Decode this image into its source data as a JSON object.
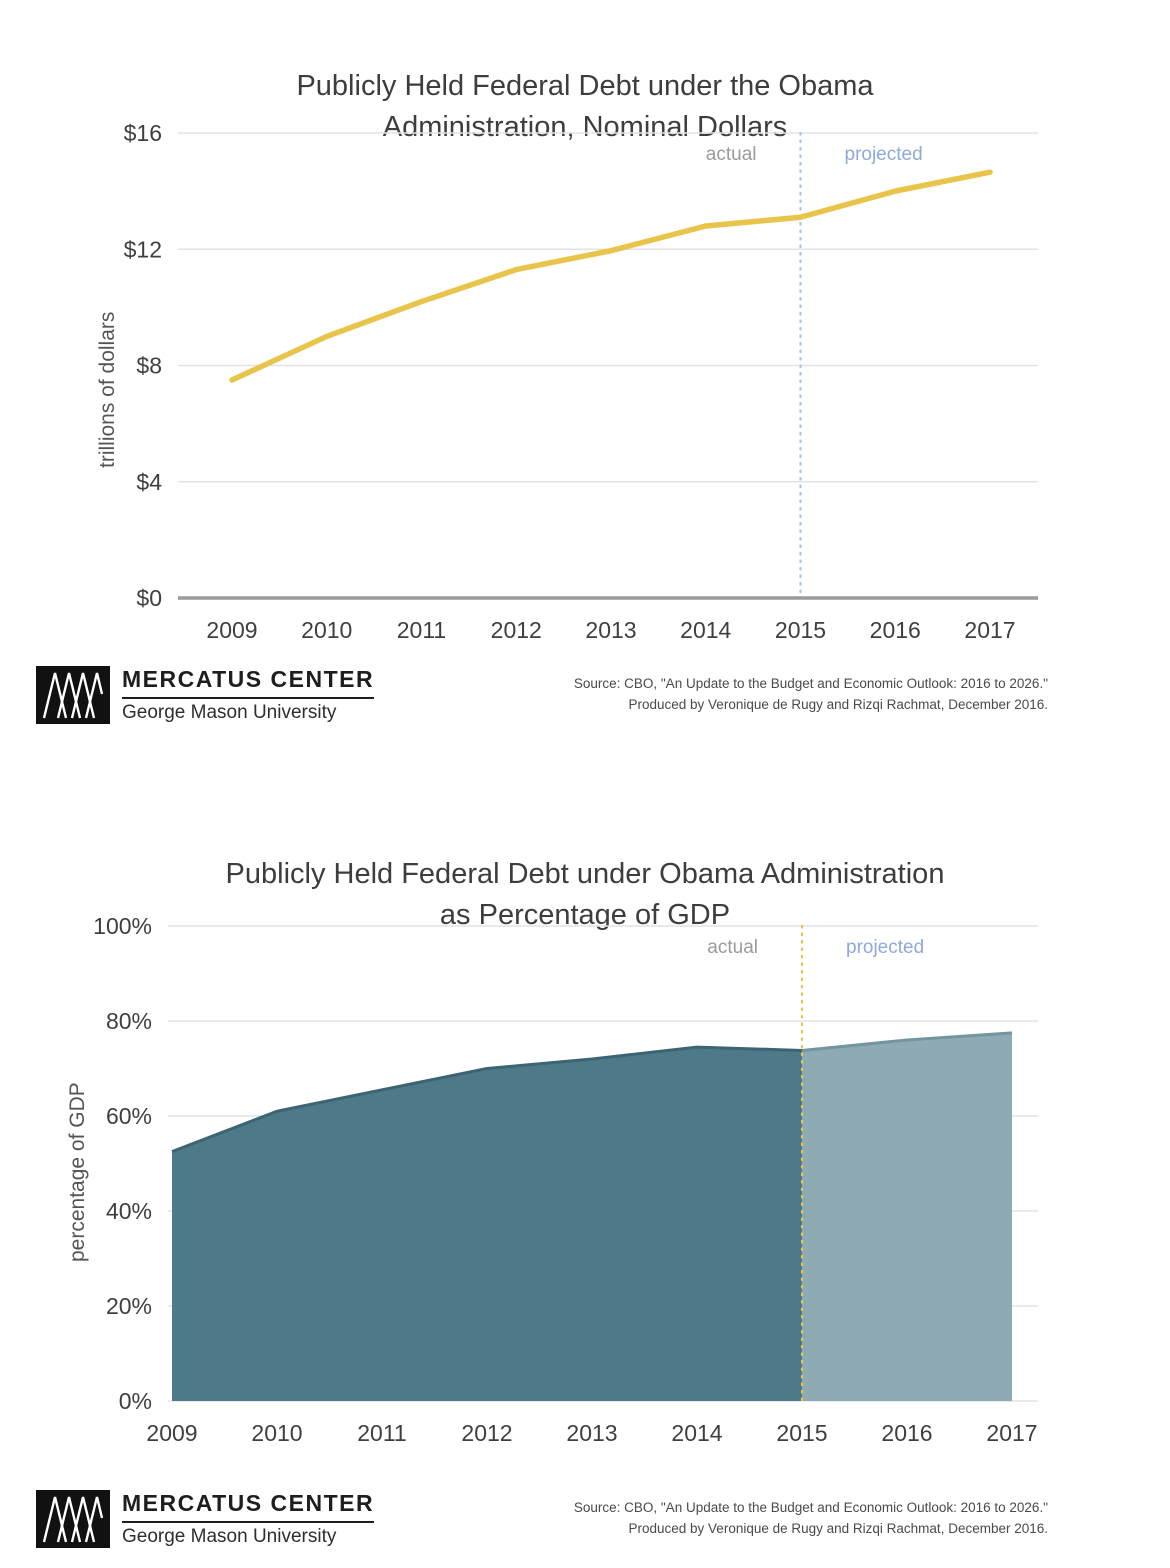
{
  "chart_data": [
    {
      "type": "line",
      "title": "Publicly Held Federal Debt under the Obama Administration, Nominal Dollars",
      "title_lines": [
        "Publicly Held Federal Debt under the Obama",
        "Administration, Nominal Dollars"
      ],
      "ylabel": "trillions of dollars",
      "x": [
        2009,
        2010,
        2011,
        2012,
        2013,
        2014,
        2015,
        2016,
        2017
      ],
      "values": [
        7.5,
        9.0,
        10.2,
        11.3,
        11.95,
        12.8,
        13.1,
        14.0,
        14.65
      ],
      "ylim": [
        0,
        16
      ],
      "yticks": [
        0,
        4,
        8,
        12,
        16
      ],
      "ytick_labels": [
        "$0",
        "$4",
        "$8",
        "$12",
        "$16"
      ],
      "divider_x": 2015,
      "annotations": {
        "actual": "actual",
        "projected": "projected"
      },
      "line_color": "#e8c44b",
      "divider_color": "#a9c3e8",
      "actual_label_color": "#9b9b9b",
      "projected_label_color": "#8fa9d9",
      "grid": "horizontal"
    },
    {
      "type": "area",
      "title": "Publicly Held Federal Debt under Obama Administration as Percentage of GDP",
      "title_lines": [
        "Publicly Held Federal Debt under Obama Administration",
        "as Percentage of GDP"
      ],
      "ylabel": "percentage of GDP",
      "x": [
        2009,
        2010,
        2011,
        2012,
        2013,
        2014,
        2015,
        2016,
        2017
      ],
      "values": [
        52.5,
        61,
        65.5,
        70,
        72,
        74.5,
        73.8,
        76,
        77.5
      ],
      "ylim": [
        0,
        100
      ],
      "yticks": [
        0,
        20,
        40,
        60,
        80,
        100
      ],
      "ytick_labels": [
        "0%",
        "20%",
        "40%",
        "60%",
        "80%",
        "100%"
      ],
      "divider_x": 2015,
      "annotations": {
        "actual": "actual",
        "projected": "projected"
      },
      "area_color_actual": "#4e7988",
      "area_color_projected": "#8eabb4",
      "stroke_color_actual": "#3c6472",
      "stroke_color_projected": "#7295a0",
      "divider_color": "#e8c44b",
      "actual_label_color": "#9b9b9b",
      "projected_label_color": "#8fa9d9",
      "grid": "horizontal"
    }
  ],
  "footer": {
    "logo_title": "MERCATUS CENTER",
    "logo_subtitle": "George Mason University",
    "source_line1": "Source: CBO, \"An Update to the Budget and Economic Outlook: 2016 to 2026.\"",
    "source_line2": "Produced by Veronique de Rugy and Rizqi Rachmat, December 2016."
  }
}
